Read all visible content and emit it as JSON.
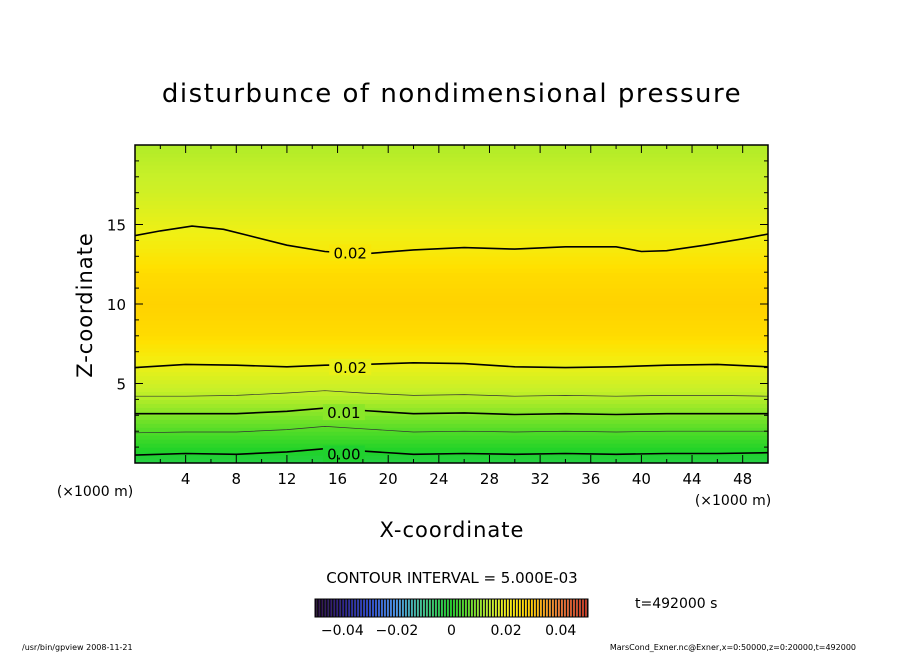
{
  "chart_data": {
    "type": "heatmap",
    "title": "disturbunce of nondimensional pressure",
    "xlabel": "X-coordinate",
    "ylabel": "Z-coordinate",
    "x_unit": "(×1000 m)",
    "y_unit": "(×1000 m)",
    "xlim": [
      0,
      50
    ],
    "ylim": [
      0,
      20
    ],
    "x_ticks": [
      "4",
      "8",
      "12",
      "16",
      "20",
      "24",
      "28",
      "32",
      "36",
      "40",
      "44",
      "48"
    ],
    "y_ticks": [
      "5",
      "10",
      "15"
    ],
    "x_tick_values": [
      4,
      8,
      12,
      16,
      20,
      24,
      28,
      32,
      36,
      40,
      44,
      48
    ],
    "y_tick_values": [
      5,
      10,
      15
    ],
    "contour_interval_text": "CONTOUR INTERVAL = 5.000E-03",
    "time_text": "t=492000 s",
    "colorbar": {
      "min": -0.05,
      "max": 0.05,
      "tick_labels": [
        "−0.04",
        "−0.02",
        "0",
        "0.02",
        "0.04"
      ],
      "tick_values": [
        -0.04,
        -0.02,
        0,
        0.02,
        0.04
      ]
    },
    "profile_z": [
      0,
      0.5,
      1,
      1.5,
      2,
      2.5,
      3,
      3.5,
      4,
      5,
      6,
      7,
      8,
      10,
      12,
      13.5,
      15,
      17,
      20
    ],
    "profile_value": [
      -0.003,
      -0.001,
      0.001,
      0.003,
      0.005,
      0.007,
      0.009,
      0.011,
      0.013,
      0.016,
      0.019,
      0.023,
      0.026,
      0.028,
      0.026,
      0.022,
      0.019,
      0.016,
      0.013
    ],
    "contours": [
      {
        "label": "0.00",
        "label_at": [
          16.5,
          0.6
        ],
        "x": [
          0,
          4,
          8,
          12,
          15,
          18,
          22,
          26,
          30,
          34,
          38,
          42,
          46,
          50
        ],
        "z": [
          0.5,
          0.6,
          0.55,
          0.7,
          0.9,
          0.75,
          0.55,
          0.6,
          0.55,
          0.6,
          0.55,
          0.6,
          0.6,
          0.65
        ]
      },
      {
        "label": "",
        "x": [
          0,
          4,
          8,
          12,
          15,
          18,
          22,
          26,
          30,
          34,
          38,
          42,
          46,
          50
        ],
        "z": [
          1.9,
          1.95,
          1.95,
          2.1,
          2.3,
          2.15,
          1.95,
          2.0,
          1.95,
          2.0,
          1.95,
          2.0,
          2.0,
          2.0
        ]
      },
      {
        "label": "0.01",
        "label_at": [
          16.5,
          3.2
        ],
        "x": [
          0,
          4,
          8,
          12,
          15,
          18,
          22,
          26,
          30,
          34,
          38,
          42,
          46,
          50
        ],
        "z": [
          3.1,
          3.1,
          3.1,
          3.25,
          3.45,
          3.3,
          3.1,
          3.15,
          3.05,
          3.1,
          3.05,
          3.1,
          3.1,
          3.1
        ]
      },
      {
        "label": "",
        "x": [
          0,
          4,
          8,
          12,
          15,
          18,
          22,
          26,
          30,
          34,
          38,
          42,
          46,
          50
        ],
        "z": [
          4.2,
          4.2,
          4.25,
          4.4,
          4.55,
          4.4,
          4.25,
          4.3,
          4.2,
          4.25,
          4.2,
          4.25,
          4.25,
          4.2
        ]
      },
      {
        "label": "0.02",
        "label_at": [
          17,
          6.05
        ],
        "x": [
          0,
          4,
          8,
          12,
          15,
          18,
          22,
          26,
          30,
          34,
          38,
          42,
          46,
          50
        ],
        "z": [
          6.0,
          6.2,
          6.15,
          6.05,
          6.15,
          6.2,
          6.3,
          6.25,
          6.05,
          6.0,
          6.05,
          6.15,
          6.2,
          6.05
        ]
      },
      {
        "label": "0.02",
        "label_at": [
          17,
          13.25
        ],
        "x": [
          0,
          2,
          4.5,
          7,
          9,
          12,
          15,
          18,
          22,
          26,
          30,
          34,
          38,
          40,
          42,
          45,
          48,
          50
        ],
        "z": [
          14.3,
          14.6,
          14.9,
          14.7,
          14.3,
          13.7,
          13.3,
          13.15,
          13.4,
          13.55,
          13.45,
          13.6,
          13.6,
          13.3,
          13.35,
          13.7,
          14.1,
          14.4
        ]
      }
    ],
    "footer_left": "/usr/bin/gpview   2008-11-21",
    "footer_right": "MarsCond_Exner.nc@Exner,x=0:50000,z=0:20000,t=492000"
  }
}
